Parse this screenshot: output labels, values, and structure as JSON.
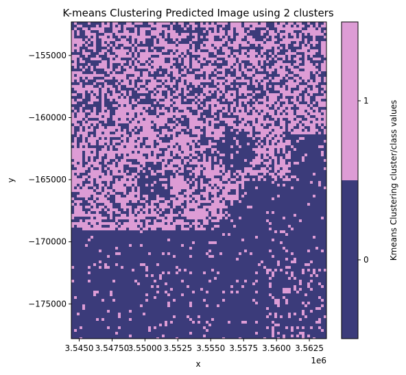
{
  "chart_data": {
    "type": "heatmap",
    "title": "K-means Clustering Predicted Image using 2 clusters",
    "xlabel": "x",
    "ylabel": "y",
    "x_offset_label": "1e6",
    "xlim": [
      3.5444,
      3.5638
    ],
    "ylim": [
      -177800,
      -152300
    ],
    "x_ticks": [
      {
        "value": 3.545,
        "label": "3.5450"
      },
      {
        "value": 3.5475,
        "label": "3.54750"
      },
      {
        "value": 3.55,
        "label": "3.55000"
      },
      {
        "value": 3.5525,
        "label": "3.5525"
      },
      {
        "value": 3.555,
        "label": "3.5550"
      },
      {
        "value": 3.5575,
        "label": "3.5575"
      },
      {
        "value": 3.56,
        "label": "3.5600"
      },
      {
        "value": 3.5625,
        "label": "3.5625"
      }
    ],
    "y_ticks": [
      {
        "value": -155000,
        "label": "−155000"
      },
      {
        "value": -160000,
        "label": "−160000"
      },
      {
        "value": -165000,
        "label": "−165000"
      },
      {
        "value": -170000,
        "label": "−170000"
      },
      {
        "value": -175000,
        "label": "−175000"
      }
    ],
    "classes": [
      {
        "value": 0,
        "label": "0",
        "color": "#3b3b7a"
      },
      {
        "value": 1,
        "label": "1",
        "color": "#dd9cd5"
      }
    ],
    "colorbar_label": "Kmeans Clustering cluster/class values",
    "colorbar_ticks": [
      {
        "value": 0,
        "label": "0"
      },
      {
        "value": 1,
        "label": "1"
      }
    ],
    "grid": false,
    "legend": "colorbar-right"
  }
}
